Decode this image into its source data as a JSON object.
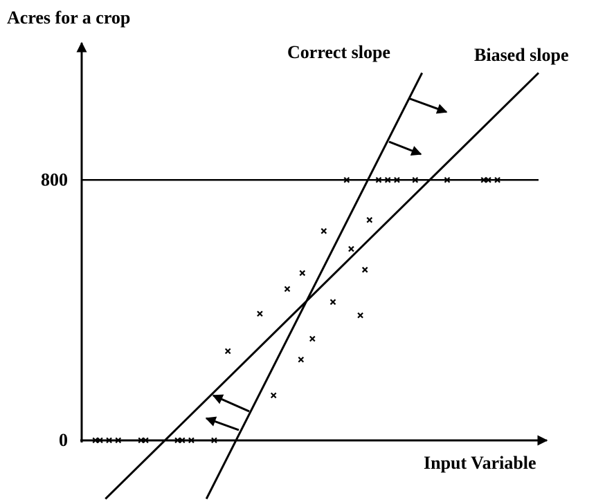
{
  "chart_data": {
    "type": "scatter",
    "ylabel": "Acres for a crop",
    "xlabel": "Input Variable",
    "xlim": [
      0,
      100
    ],
    "ylim": [
      -200,
      1200
    ],
    "yticks": [
      0,
      800
    ],
    "points": {
      "x": [
        3,
        4,
        6,
        8,
        13,
        14,
        21,
        22,
        24,
        29,
        58,
        65,
        67,
        69,
        73,
        80,
        88,
        89,
        91,
        32,
        39,
        42,
        45,
        48,
        48.3,
        50.5,
        53,
        55,
        59,
        61,
        62,
        63
      ],
      "y": [
        0,
        0,
        0,
        0,
        0,
        0,
        0,
        0,
        0,
        0,
        800,
        800,
        800,
        800,
        800,
        800,
        800,
        800,
        800,
        274,
        389,
        138,
        465,
        248,
        514,
        312,
        643,
        425,
        588,
        384,
        524,
        677
      ]
    },
    "lines": [
      {
        "name": "Correct slope",
        "x": [
          27.3,
          74.5
        ],
        "y": [
          -180,
          1129
        ]
      },
      {
        "name": "Biased slope",
        "x": [
          5.2,
          100
        ],
        "y": [
          -180,
          1129
        ]
      }
    ]
  }
}
